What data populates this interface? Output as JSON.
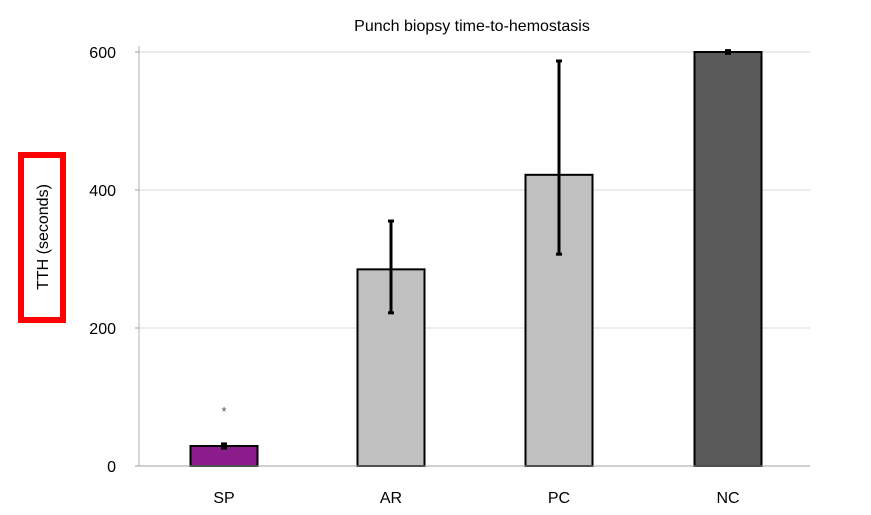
{
  "chart_data": {
    "type": "bar",
    "title": "Punch biopsy time-to-hemostasis",
    "xlabel": "",
    "ylabel": "TTH (seconds)",
    "ylim": [
      0,
      600
    ],
    "yticks": [
      0,
      200,
      400,
      600
    ],
    "categories": [
      "SP",
      "AR",
      "PC",
      "NC"
    ],
    "values": [
      29,
      285,
      422,
      600
    ],
    "error_low": [
      26,
      222,
      307,
      598
    ],
    "error_high": [
      32,
      355,
      587,
      602
    ],
    "bar_colors": [
      "#8B1E8C",
      "#C0C0C0",
      "#C0C0C0",
      "#595959"
    ],
    "grid": true,
    "annotations": [
      {
        "category": "SP",
        "text": "*"
      }
    ],
    "ylabel_highlight_color": "#FF0000"
  }
}
